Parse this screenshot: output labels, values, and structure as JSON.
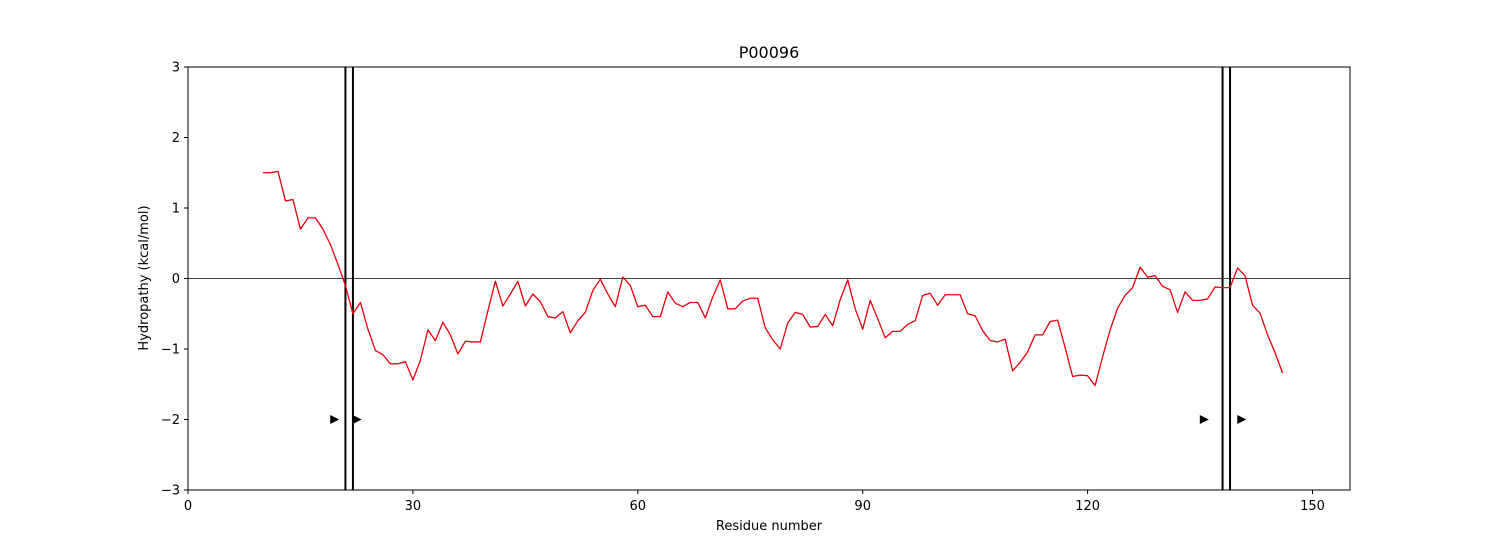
{
  "chart_data": {
    "type": "line",
    "title": "P00096",
    "xlabel": "Residue number",
    "ylabel": "Hydropathy (kcal/mol)",
    "xlim": [
      0,
      155
    ],
    "ylim": [
      -3,
      3
    ],
    "xticks": [
      0,
      30,
      60,
      90,
      120,
      150
    ],
    "yticks": [
      -3,
      -2,
      -1,
      0,
      1,
      2,
      3
    ],
    "zero_line": 0,
    "line_color": "#e8000b",
    "marker_color": "#000000",
    "series": [
      {
        "x": [
          10,
          11,
          12,
          13,
          14,
          15,
          16,
          17,
          18,
          19,
          20,
          21,
          22,
          23,
          24,
          25,
          26,
          27,
          28,
          29,
          30,
          31,
          32,
          33,
          34,
          35,
          36,
          37,
          38,
          39,
          40,
          41,
          42,
          43,
          44,
          45,
          46,
          47,
          48,
          49,
          50,
          51,
          52,
          53,
          54,
          55,
          56,
          57,
          58,
          59,
          60,
          61,
          62,
          63,
          64,
          65,
          66,
          67,
          68,
          69,
          70,
          71,
          72,
          73,
          74,
          75,
          76,
          77,
          78,
          79,
          80,
          81,
          82,
          83,
          84,
          85,
          86,
          87,
          88,
          89,
          90,
          91,
          92,
          93,
          94,
          95,
          96,
          97,
          98,
          99,
          100,
          101,
          102,
          103,
          104,
          105,
          106,
          107,
          108,
          109,
          110,
          111,
          112,
          113,
          114,
          115,
          116,
          117,
          118,
          119,
          120,
          121,
          122,
          123,
          124,
          125,
          126,
          127,
          128,
          129,
          130,
          131,
          132,
          133,
          134,
          135,
          136,
          137,
          138,
          139,
          140,
          141,
          142,
          143,
          144,
          145,
          146
        ],
        "values": [
          1.5,
          1.5,
          1.52,
          1.1,
          1.12,
          0.7,
          0.86,
          0.86,
          0.7,
          0.48,
          0.2,
          -0.1,
          -0.5,
          -0.34,
          -0.72,
          -1.02,
          -1.08,
          -1.21,
          -1.21,
          -1.18,
          -1.44,
          -1.16,
          -0.73,
          -0.88,
          -0.62,
          -0.8,
          -1.07,
          -0.89,
          -0.9,
          -0.9,
          -0.46,
          -0.04,
          -0.39,
          -0.22,
          -0.04,
          -0.39,
          -0.22,
          -0.33,
          -0.54,
          -0.56,
          -0.47,
          -0.77,
          -0.6,
          -0.48,
          -0.17,
          -0.01,
          -0.22,
          -0.4,
          0.02,
          -0.1,
          -0.4,
          -0.38,
          -0.54,
          -0.54,
          -0.19,
          -0.35,
          -0.4,
          -0.34,
          -0.34,
          -0.56,
          -0.26,
          -0.02,
          -0.43,
          -0.43,
          -0.32,
          -0.28,
          -0.28,
          -0.7,
          -0.87,
          -1.0,
          -0.63,
          -0.48,
          -0.51,
          -0.69,
          -0.68,
          -0.51,
          -0.67,
          -0.3,
          -0.02,
          -0.43,
          -0.72,
          -0.31,
          -0.57,
          -0.84,
          -0.75,
          -0.75,
          -0.65,
          -0.6,
          -0.24,
          -0.21,
          -0.38,
          -0.23,
          -0.23,
          -0.23,
          -0.5,
          -0.53,
          -0.74,
          -0.88,
          -0.9,
          -0.86,
          -1.31,
          -1.19,
          -1.04,
          -0.8,
          -0.8,
          -0.61,
          -0.59,
          -0.98,
          -1.39,
          -1.37,
          -1.38,
          -1.52,
          -1.11,
          -0.73,
          -0.42,
          -0.24,
          -0.13,
          0.16,
          0.02,
          0.04,
          -0.11,
          -0.16,
          -0.48,
          -0.19,
          -0.31,
          -0.31,
          -0.29,
          -0.12,
          -0.13,
          -0.13,
          0.15,
          0.04,
          -0.38,
          -0.49,
          -0.8,
          -1.05,
          -1.34
        ]
      }
    ],
    "vertical_lines": [
      21,
      22,
      138,
      139
    ],
    "markers": [
      {
        "x": 19.5,
        "y": -2
      },
      {
        "x": 22.5,
        "y": -2
      },
      {
        "x": 135.5,
        "y": -2
      },
      {
        "x": 140.5,
        "y": -2
      }
    ]
  }
}
